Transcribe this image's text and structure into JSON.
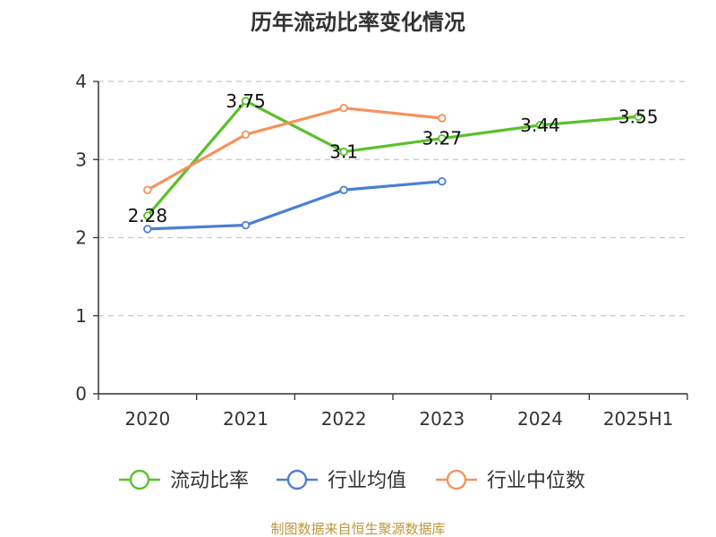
{
  "chart_data": {
    "type": "line",
    "title": "历年流动比率变化情况",
    "categories": [
      "2020",
      "2021",
      "2022",
      "2023",
      "2024",
      "2025H1"
    ],
    "yticks": [
      "0",
      "1",
      "2",
      "3",
      "4"
    ],
    "ylim": [
      0,
      4
    ],
    "grid": true,
    "legend_position": "bottom",
    "series": [
      {
        "name": "流动比率",
        "color": "#5ac02c",
        "values": [
          2.28,
          3.75,
          3.1,
          3.27,
          3.44,
          3.55
        ],
        "labels": [
          "2.28",
          "3.75",
          "3.1",
          "3.27",
          "3.44",
          "3.55"
        ]
      },
      {
        "name": "行业均值",
        "color": "#4a7fd4",
        "values": [
          2.11,
          2.16,
          2.61,
          2.72,
          null,
          null
        ]
      },
      {
        "name": "行业中位数",
        "color": "#f5925c",
        "values": [
          2.61,
          3.32,
          3.66,
          3.53,
          null,
          null
        ]
      }
    ]
  },
  "source_text": "制图数据来自恒生聚源数据库"
}
